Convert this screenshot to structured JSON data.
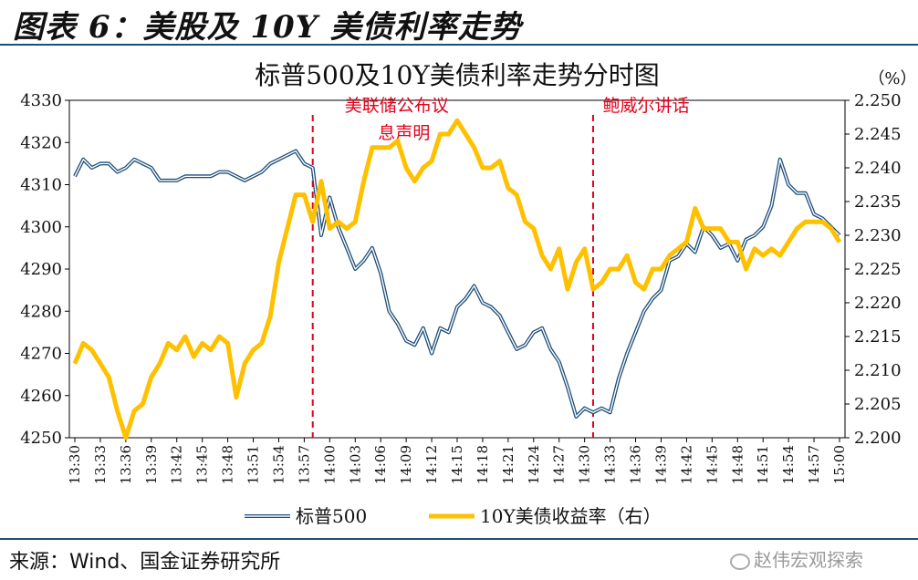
{
  "figure_title": "图表 6：美股及 10Y 美债利率走势",
  "source": "来源：Wind、国金证券研究所",
  "watermark": "赵伟宏观探索",
  "chart_data": {
    "type": "line",
    "title": "标普500及10Y美债利率走势分时图",
    "unit_right": "（%）",
    "x": [
      "13:30",
      "13:31",
      "13:32",
      "13:33",
      "13:34",
      "13:35",
      "13:36",
      "13:37",
      "13:38",
      "13:39",
      "13:40",
      "13:41",
      "13:42",
      "13:43",
      "13:44",
      "13:45",
      "13:46",
      "13:47",
      "13:48",
      "13:49",
      "13:50",
      "13:51",
      "13:52",
      "13:53",
      "13:54",
      "13:55",
      "13:56",
      "13:57",
      "13:58",
      "13:59",
      "14:00",
      "14:01",
      "14:02",
      "14:03",
      "14:04",
      "14:05",
      "14:06",
      "14:07",
      "14:08",
      "14:09",
      "14:10",
      "14:11",
      "14:12",
      "14:13",
      "14:14",
      "14:15",
      "14:16",
      "14:17",
      "14:18",
      "14:19",
      "14:20",
      "14:21",
      "14:22",
      "14:23",
      "14:24",
      "14:25",
      "14:26",
      "14:27",
      "14:28",
      "14:29",
      "14:30",
      "14:31",
      "14:32",
      "14:33",
      "14:34",
      "14:35",
      "14:36",
      "14:37",
      "14:38",
      "14:39",
      "14:40",
      "14:41",
      "14:42",
      "14:43",
      "14:44",
      "14:45",
      "14:46",
      "14:47",
      "14:48",
      "14:49",
      "14:50",
      "14:51",
      "14:52",
      "14:53",
      "14:54",
      "14:55",
      "14:56",
      "14:57",
      "14:58",
      "14:59",
      "15:00"
    ],
    "x_tick_labels": [
      "13:30",
      "13:33",
      "13:36",
      "13:39",
      "13:42",
      "13:45",
      "13:48",
      "13:51",
      "13:54",
      "13:57",
      "14:00",
      "14:03",
      "14:06",
      "14:09",
      "14:12",
      "14:15",
      "14:18",
      "14:21",
      "14:24",
      "14:27",
      "14:30",
      "14:33",
      "14:36",
      "14:39",
      "14:42",
      "14:45",
      "14:48",
      "14:51",
      "14:54",
      "14:57",
      "15:00"
    ],
    "y_left": {
      "min": 4250,
      "max": 4330,
      "ticks": [
        4250,
        4260,
        4270,
        4280,
        4290,
        4300,
        4310,
        4320,
        4330
      ]
    },
    "y_right": {
      "min": 2.2,
      "max": 2.25,
      "ticks": [
        "2.200",
        "2.205",
        "2.210",
        "2.215",
        "2.220",
        "2.225",
        "2.230",
        "2.235",
        "2.240",
        "2.245",
        "2.250"
      ]
    },
    "series": [
      {
        "name": "标普500",
        "axis": "left",
        "color": "#1f4e79",
        "values": [
          4312,
          4316,
          4314,
          4315,
          4315,
          4313,
          4314,
          4316,
          4315,
          4314,
          4311,
          4311,
          4311,
          4312,
          4312,
          4312,
          4312,
          4313,
          4313,
          4312,
          4311,
          4312,
          4313,
          4315,
          4316,
          4317,
          4318,
          4315,
          4314,
          4298,
          4307,
          4300,
          4295,
          4290,
          4292,
          4295,
          4289,
          4280,
          4277,
          4273,
          4272,
          4276,
          4270,
          4276,
          4275,
          4281,
          4283,
          4286,
          4282,
          4281,
          4279,
          4275,
          4271,
          4272,
          4275,
          4276,
          4271,
          4268,
          4262,
          4255,
          4257,
          4256,
          4257,
          4256,
          4264,
          4270,
          4275,
          4280,
          4283,
          4285,
          4292,
          4293,
          4296,
          4294,
          4300,
          4298,
          4295,
          4296,
          4292,
          4297,
          4298,
          4300,
          4305,
          4316,
          4310,
          4308,
          4308,
          4303,
          4302,
          4300,
          4298
        ]
      },
      {
        "name": "10Y美债收益率（右）",
        "axis": "right",
        "color": "#ffc000",
        "values": [
          2.211,
          2.214,
          2.213,
          2.211,
          2.209,
          2.204,
          2.2,
          2.204,
          2.205,
          2.209,
          2.211,
          2.214,
          2.213,
          2.215,
          2.212,
          2.214,
          2.213,
          2.215,
          2.214,
          2.206,
          2.211,
          2.213,
          2.214,
          2.218,
          2.226,
          2.231,
          2.236,
          2.236,
          2.232,
          2.238,
          2.231,
          2.232,
          2.231,
          2.232,
          2.238,
          2.243,
          2.243,
          2.243,
          2.244,
          2.24,
          2.238,
          2.24,
          2.241,
          2.245,
          2.245,
          2.247,
          2.245,
          2.243,
          2.24,
          2.24,
          2.241,
          2.237,
          2.236,
          2.232,
          2.231,
          2.227,
          2.225,
          2.228,
          2.222,
          2.226,
          2.228,
          2.222,
          2.223,
          2.225,
          2.225,
          2.227,
          2.223,
          2.222,
          2.225,
          2.225,
          2.227,
          2.228,
          2.229,
          2.234,
          2.231,
          2.231,
          2.231,
          2.229,
          2.229,
          2.225,
          2.228,
          2.227,
          2.228,
          2.227,
          2.229,
          2.231,
          2.232,
          2.232,
          2.232,
          2.231,
          2.229
        ]
      }
    ],
    "annotations": [
      {
        "x": "13:58",
        "lines": [
          "美联储公布议",
          "息声明"
        ],
        "color": "#e3001b"
      },
      {
        "x": "14:31",
        "lines": [
          "鲍威尔讲话"
        ],
        "color": "#e3001b"
      }
    ],
    "legend_position": "bottom",
    "grid": false
  }
}
